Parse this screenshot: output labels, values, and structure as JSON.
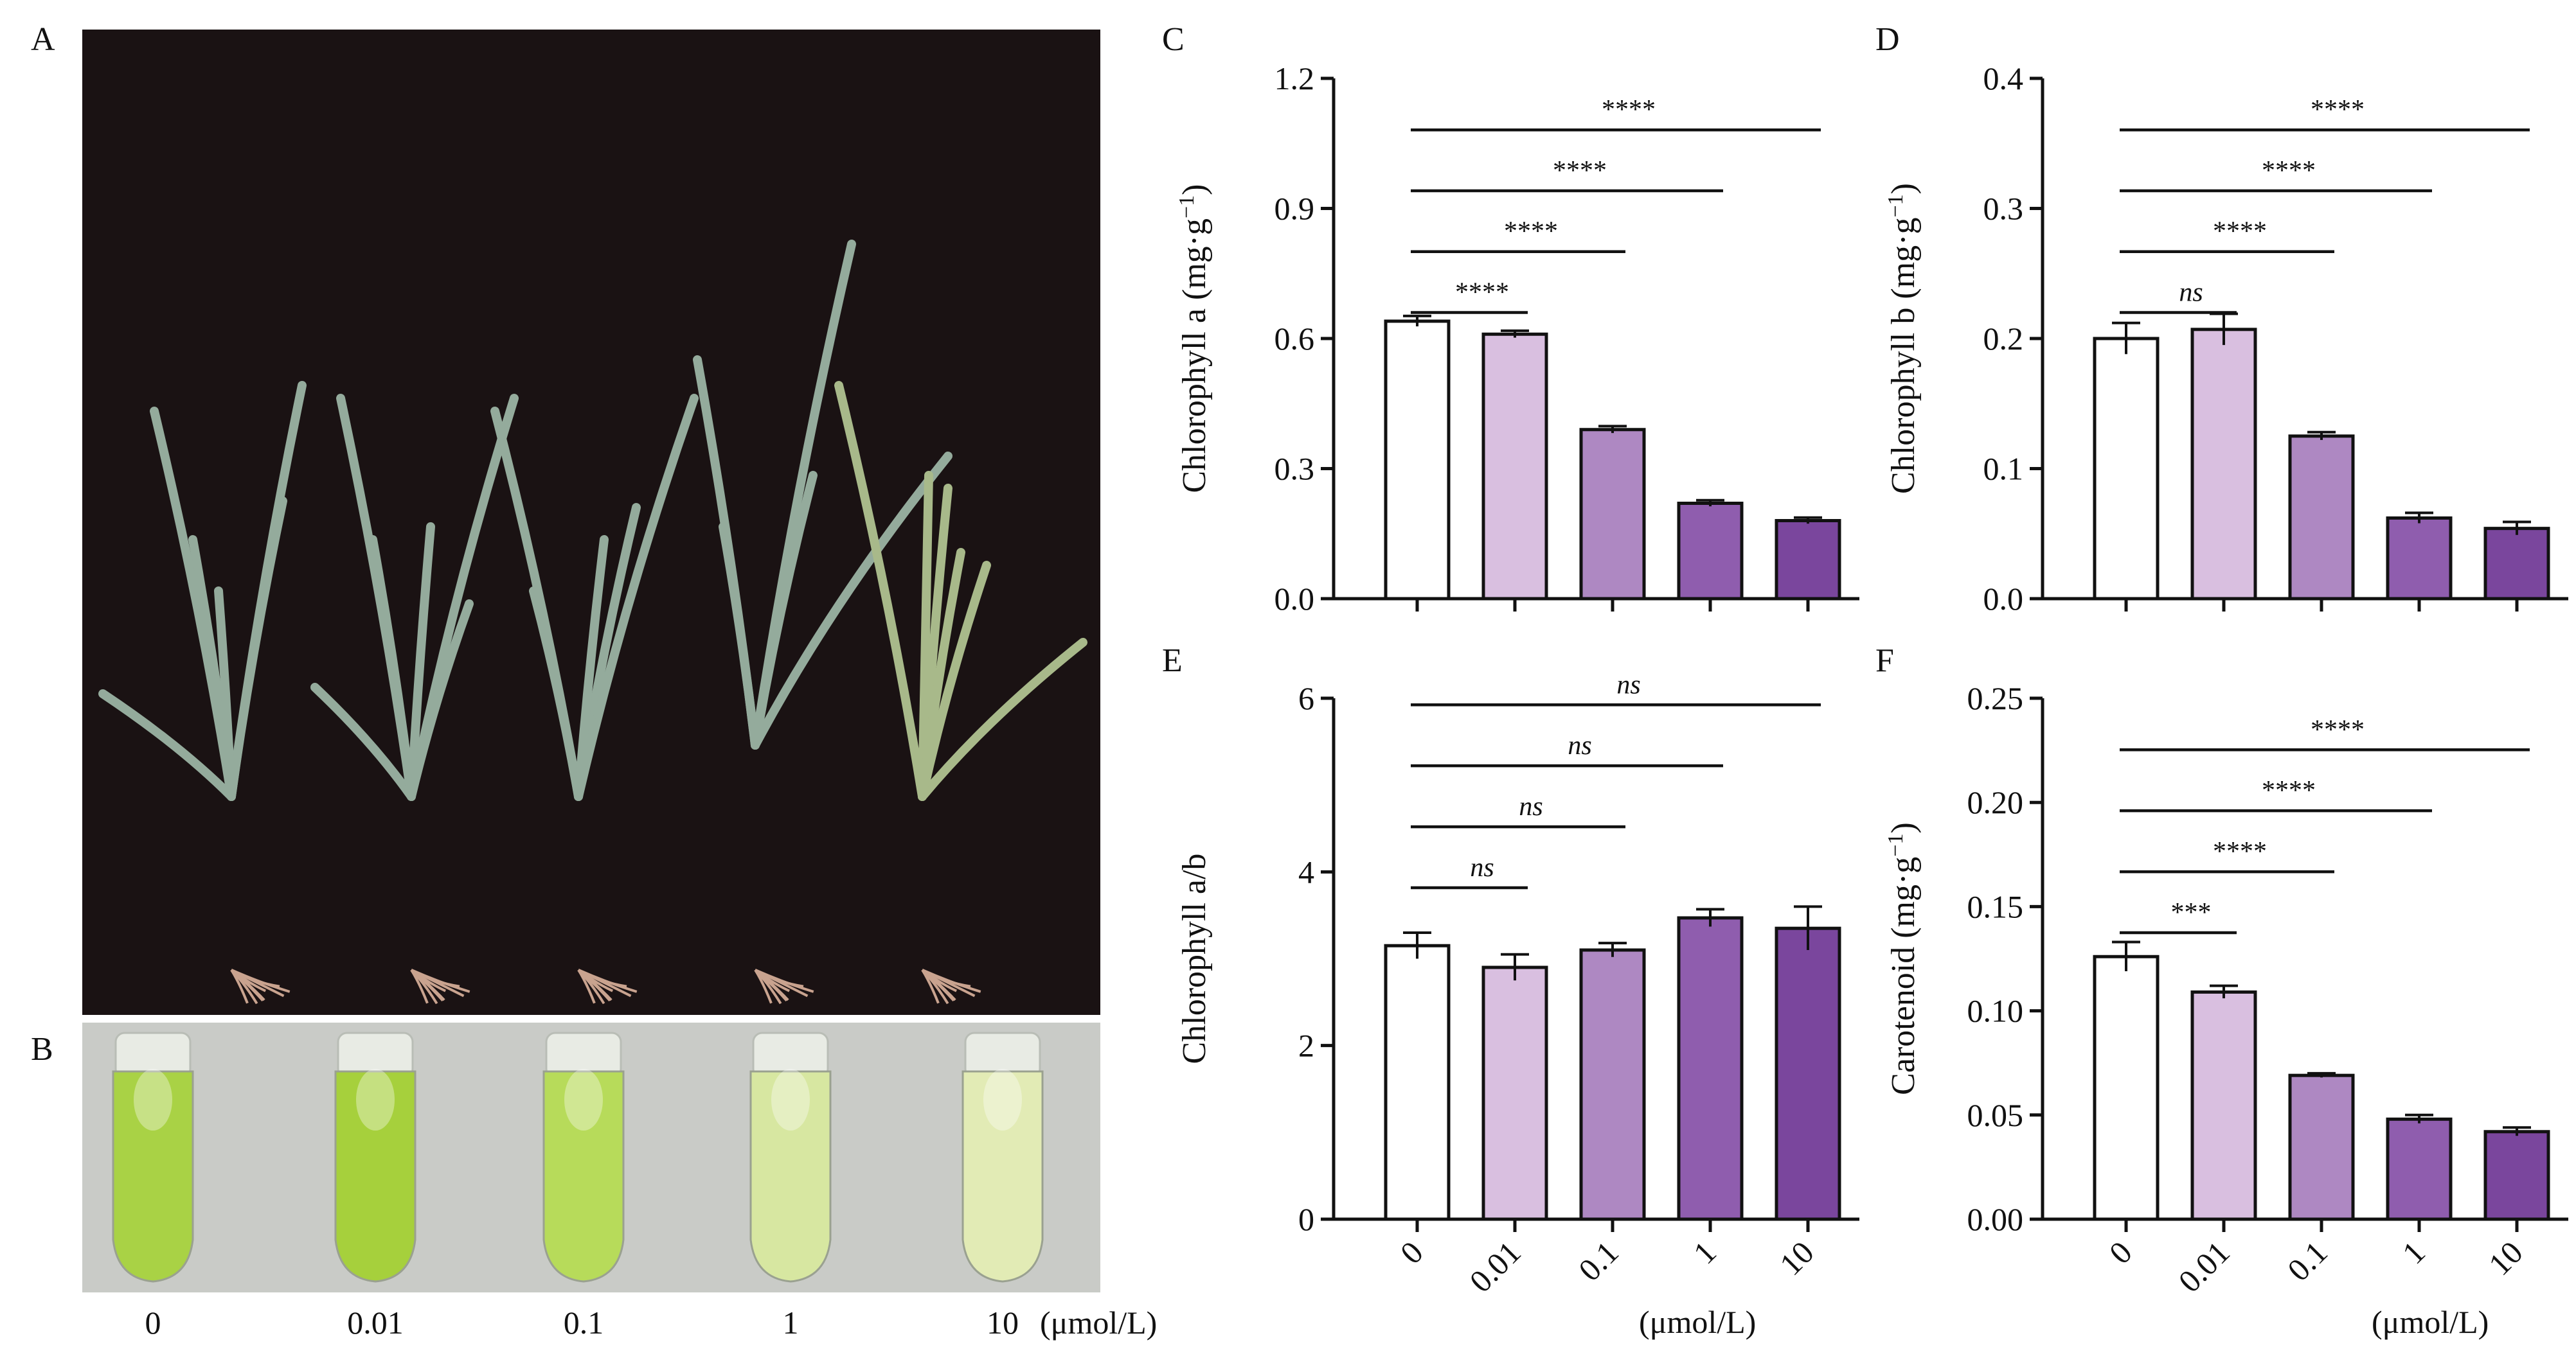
{
  "panels": {
    "A": "A",
    "B": "B",
    "C": "C",
    "D": "D",
    "E": "E",
    "F": "F"
  },
  "concentrations": [
    "0",
    "0.01",
    "0.1",
    "1",
    "10"
  ],
  "unit": "(μmol/L)",
  "colors": {
    "bars": [
      "#ffffff",
      "#d9bfe0",
      "#ae88c2",
      "#8f5dae",
      "#7a469d"
    ],
    "photo_bg": "#1a1213",
    "tubes_bg": "#c9cbc7",
    "tube_liquid": [
      "#a9d245",
      "#a6d03c",
      "#b7db5a",
      "#d7e7a1",
      "#e2ebb5"
    ]
  },
  "chart_data": [
    {
      "id": "C",
      "type": "bar",
      "ylabel_main": "Chlorophyll a (mg·g",
      "ylabel_sup": "−1",
      "ylabel_end": ")",
      "categories": [
        "0",
        "0.01",
        "0.1",
        "1",
        "10"
      ],
      "values": [
        0.64,
        0.61,
        0.39,
        0.22,
        0.18
      ],
      "errors": [
        0.012,
        0.008,
        0.008,
        0.007,
        0.007
      ],
      "ylim": [
        0,
        1.2
      ],
      "yticks": [
        "0.0",
        "0.3",
        "0.6",
        "0.9",
        "1.2"
      ],
      "comparisons": [
        {
          "from": "0",
          "to": "0.01",
          "label": "****",
          "italic": false
        },
        {
          "from": "0",
          "to": "0.1",
          "label": "****",
          "italic": false
        },
        {
          "from": "0",
          "to": "1",
          "label": "****",
          "italic": false
        },
        {
          "from": "0",
          "to": "10",
          "label": "****",
          "italic": false
        }
      ],
      "show_xticklabels": false
    },
    {
      "id": "D",
      "type": "bar",
      "ylabel_main": "Chlorophyll b (mg·g",
      "ylabel_sup": "−1",
      "ylabel_end": ")",
      "categories": [
        "0",
        "0.01",
        "0.1",
        "1",
        "10"
      ],
      "values": [
        0.2,
        0.207,
        0.125,
        0.062,
        0.054
      ],
      "errors": [
        0.012,
        0.012,
        0.003,
        0.004,
        0.005
      ],
      "ylim": [
        0,
        0.4
      ],
      "yticks": [
        "0.0",
        "0.1",
        "0.2",
        "0.3",
        "0.4"
      ],
      "comparisons": [
        {
          "from": "0",
          "to": "0.01",
          "label": "ns",
          "italic": true
        },
        {
          "from": "0",
          "to": "0.1",
          "label": "****",
          "italic": false
        },
        {
          "from": "0",
          "to": "1",
          "label": "****",
          "italic": false
        },
        {
          "from": "0",
          "to": "10",
          "label": "****",
          "italic": false
        }
      ],
      "show_xticklabels": false
    },
    {
      "id": "E",
      "type": "bar",
      "ylabel_main": "Chlorophyll a/b",
      "ylabel_sup": "",
      "ylabel_end": "",
      "categories": [
        "0",
        "0.01",
        "0.1",
        "1",
        "10"
      ],
      "values": [
        3.15,
        2.9,
        3.1,
        3.47,
        3.35
      ],
      "errors": [
        0.15,
        0.15,
        0.08,
        0.1,
        0.25
      ],
      "ylim": [
        0,
        6
      ],
      "yticks": [
        "0",
        "2",
        "4",
        "6"
      ],
      "comparisons": [
        {
          "from": "0",
          "to": "0.01",
          "label": "ns",
          "italic": true
        },
        {
          "from": "0",
          "to": "0.1",
          "label": "ns",
          "italic": true
        },
        {
          "from": "0",
          "to": "1",
          "label": "ns",
          "italic": true
        },
        {
          "from": "0",
          "to": "10",
          "label": "ns",
          "italic": true
        }
      ],
      "show_xticklabels": true
    },
    {
      "id": "F",
      "type": "bar",
      "ylabel_main": "Carotenoid (mg·g",
      "ylabel_sup": "−1",
      "ylabel_end": ")",
      "categories": [
        "0",
        "0.01",
        "0.1",
        "1",
        "10"
      ],
      "values": [
        0.126,
        0.109,
        0.069,
        0.048,
        0.042
      ],
      "errors": [
        0.007,
        0.003,
        0.001,
        0.002,
        0.002
      ],
      "ylim": [
        0,
        0.25
      ],
      "yticks": [
        "0.00",
        "0.05",
        "0.10",
        "0.15",
        "0.20",
        "0.25"
      ],
      "comparisons": [
        {
          "from": "0",
          "to": "0.01",
          "label": "***",
          "italic": false
        },
        {
          "from": "0",
          "to": "0.1",
          "label": "****",
          "italic": false
        },
        {
          "from": "0",
          "to": "1",
          "label": "****",
          "italic": false
        },
        {
          "from": "0",
          "to": "10",
          "label": "****",
          "italic": false
        }
      ],
      "show_xticklabels": true
    }
  ]
}
